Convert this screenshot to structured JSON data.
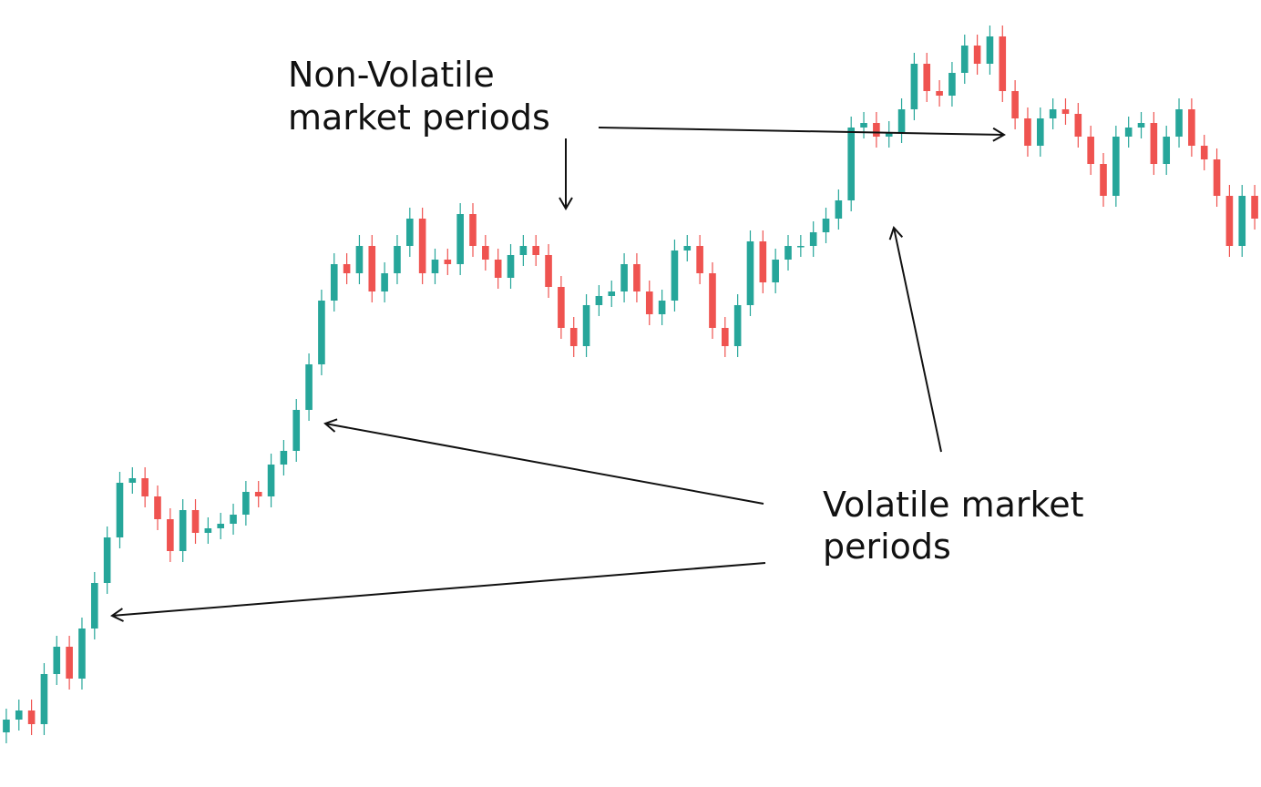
{
  "chart_data": {
    "type": "candlestick",
    "up_color": "#26a69a",
    "down_color": "#ef5350",
    "ylim": [
      0,
      864
    ],
    "open": [
      60,
      74,
      84,
      69,
      124,
      154,
      119,
      174,
      224,
      274,
      334,
      339,
      319,
      294,
      259,
      304,
      279,
      284,
      289,
      299,
      324,
      319,
      354,
      369,
      414,
      464,
      534,
      574,
      564,
      594,
      544,
      564,
      594,
      624,
      564,
      579,
      574,
      629,
      594,
      579,
      559,
      584,
      594,
      584,
      549,
      504,
      484,
      529,
      539,
      544,
      574,
      544,
      519,
      534,
      589,
      594,
      564,
      504,
      484,
      529,
      599,
      554,
      579,
      594,
      594,
      609,
      624,
      644,
      724,
      729,
      714,
      719,
      744,
      794,
      764,
      759,
      784,
      814,
      794,
      824,
      764,
      734,
      704,
      734,
      744,
      739,
      714,
      684,
      649,
      714,
      724,
      729,
      684,
      714,
      744,
      704,
      689,
      649,
      594,
      649
    ],
    "high": [
      86,
      96,
      96,
      136,
      166,
      166,
      186,
      236,
      286,
      346,
      351,
      351,
      331,
      306,
      316,
      316,
      296,
      301,
      311,
      336,
      336,
      366,
      381,
      426,
      476,
      546,
      586,
      586,
      606,
      606,
      576,
      606,
      636,
      636,
      591,
      591,
      641,
      641,
      606,
      591,
      596,
      606,
      606,
      596,
      561,
      516,
      541,
      551,
      556,
      586,
      586,
      556,
      546,
      601,
      606,
      606,
      576,
      516,
      541,
      611,
      611,
      591,
      606,
      606,
      621,
      636,
      656,
      736,
      741,
      741,
      731,
      756,
      806,
      806,
      776,
      796,
      826,
      826,
      836,
      836,
      776,
      746,
      746,
      756,
      756,
      751,
      726,
      696,
      726,
      736,
      741,
      741,
      726,
      756,
      756,
      716,
      701,
      661,
      661,
      661
    ],
    "low": [
      48,
      62,
      57,
      57,
      112,
      107,
      107,
      162,
      212,
      262,
      322,
      307,
      282,
      247,
      247,
      267,
      267,
      272,
      277,
      287,
      307,
      307,
      342,
      357,
      402,
      452,
      522,
      552,
      552,
      532,
      532,
      552,
      582,
      552,
      552,
      562,
      562,
      582,
      567,
      547,
      547,
      572,
      572,
      537,
      492,
      472,
      472,
      517,
      527,
      532,
      532,
      507,
      507,
      522,
      577,
      552,
      492,
      472,
      472,
      517,
      542,
      542,
      567,
      582,
      582,
      597,
      612,
      632,
      712,
      702,
      702,
      707,
      732,
      752,
      747,
      747,
      772,
      782,
      782,
      752,
      722,
      692,
      692,
      722,
      727,
      702,
      672,
      637,
      637,
      702,
      712,
      672,
      672,
      702,
      692,
      677,
      637,
      582,
      582,
      612
    ],
    "close": [
      74,
      84,
      69,
      124,
      154,
      119,
      174,
      224,
      274,
      334,
      339,
      319,
      294,
      259,
      304,
      279,
      284,
      289,
      299,
      324,
      319,
      354,
      369,
      414,
      464,
      534,
      574,
      564,
      594,
      544,
      564,
      594,
      624,
      564,
      579,
      574,
      629,
      594,
      579,
      559,
      584,
      594,
      584,
      549,
      504,
      484,
      529,
      539,
      544,
      574,
      544,
      519,
      534,
      589,
      594,
      564,
      504,
      484,
      529,
      599,
      554,
      579,
      594,
      594,
      609,
      624,
      644,
      724,
      729,
      714,
      719,
      744,
      794,
      764,
      759,
      784,
      814,
      794,
      824,
      764,
      734,
      704,
      734,
      744,
      739,
      714,
      684,
      649,
      714,
      724,
      729,
      684,
      714,
      744,
      704,
      689,
      649,
      594,
      649,
      624
    ],
    "annotations": [
      {
        "lines": [
          "Non-Volatile",
          "market periods"
        ]
      },
      {
        "lines": [
          "Volatile market",
          "periods"
        ]
      }
    ]
  }
}
